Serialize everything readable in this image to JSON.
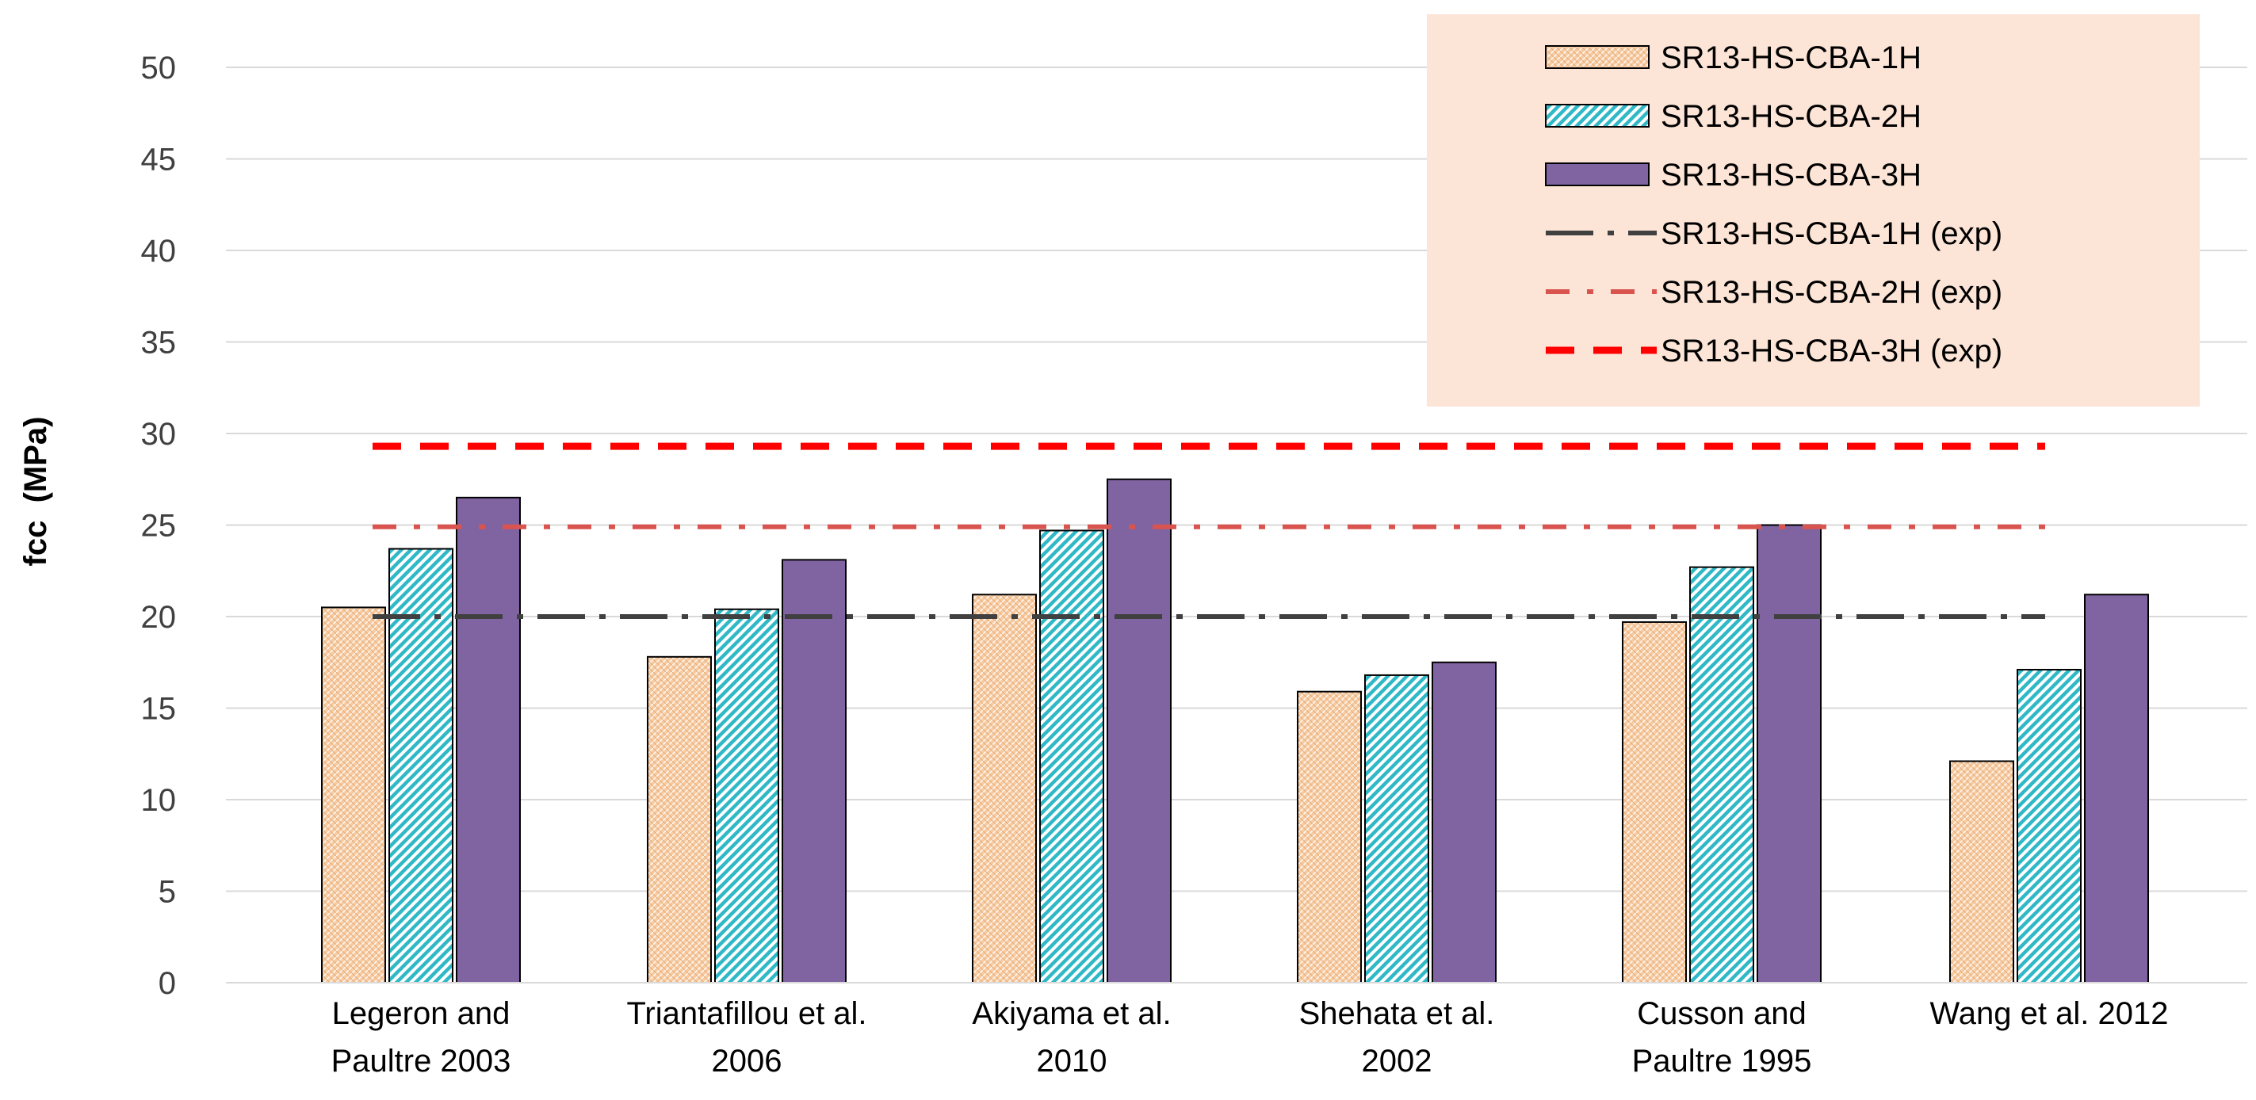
{
  "chart_data": {
    "type": "bar",
    "title": "",
    "xlabel": "",
    "ylabel": "fcc  (MPa)",
    "ylim": [
      0,
      50
    ],
    "yticks": [
      0,
      5,
      10,
      15,
      20,
      25,
      30,
      35,
      40,
      45,
      50
    ],
    "grid": true,
    "legend_position": "top-right",
    "categories": [
      [
        "Legeron and",
        "Paultre 2003"
      ],
      [
        "Triantafillou et al.",
        "2006"
      ],
      [
        "Akiyama et al.",
        "2010"
      ],
      [
        "Shehata et al.",
        "2002"
      ],
      [
        "Cusson and",
        "Paultre 1995"
      ],
      [
        "Wang et al. 2012"
      ]
    ],
    "series": [
      {
        "name": "SR13-HS-CBA-1H",
        "values": [
          20.5,
          17.8,
          21.2,
          15.9,
          19.7,
          12.1
        ],
        "color": "#F8CBA0",
        "pattern": "crosshatch"
      },
      {
        "name": "SR13-HS-CBA-2H",
        "values": [
          23.7,
          20.4,
          24.7,
          16.8,
          22.7,
          17.1
        ],
        "color": "#2FB8C6",
        "pattern": "diagonal"
      },
      {
        "name": "SR13-HS-CBA-3H",
        "values": [
          26.5,
          23.1,
          27.5,
          17.5,
          25.0,
          21.2
        ],
        "color": "#8064A2",
        "pattern": "solid"
      }
    ],
    "reference_lines": [
      {
        "name": "SR13-HS-CBA-1H (exp)",
        "value": 20.0,
        "color": "#404040",
        "style": "long-dash-dot"
      },
      {
        "name": "SR13-HS-CBA-2H (exp)",
        "value": 24.9,
        "color": "#D9534F",
        "style": "dash-dot"
      },
      {
        "name": "SR13-HS-CBA-3H (exp)",
        "value": 29.3,
        "color": "#FF0000",
        "style": "dash"
      }
    ],
    "legend_background": "#FCE4D6"
  }
}
